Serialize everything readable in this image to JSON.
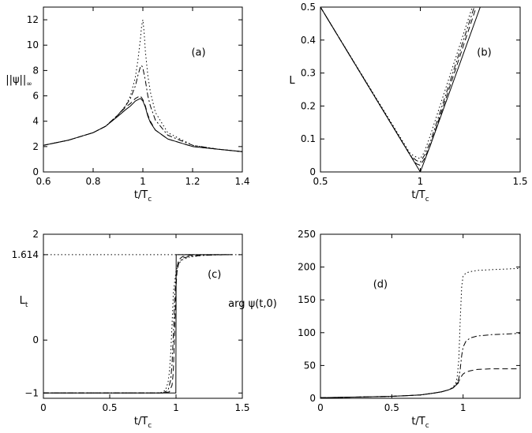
{
  "chart_data": [
    {
      "type": "line",
      "panel_label": "(a)",
      "xlabel": "t/T",
      "xlabel_sub": "c",
      "ylabel": "||ψ||",
      "ylabel_sub": "∞",
      "xlim": [
        0.6,
        1.4
      ],
      "ylim": [
        0,
        13
      ],
      "xticks": [
        0.6,
        0.8,
        1,
        1.2,
        1.4
      ],
      "xtick_labels": [
        "0.6",
        "0.8",
        "1",
        "1.2",
        "1.4"
      ],
      "yticks": [
        0,
        2,
        4,
        6,
        8,
        10,
        12
      ],
      "ytick_labels": [
        "0",
        "2",
        "4",
        "6",
        "8",
        "10",
        "12"
      ],
      "series": [
        {
          "style": "solid",
          "x": [
            0.6,
            0.7,
            0.8,
            0.85,
            0.9,
            0.93,
            0.95,
            0.97,
            0.98,
            0.99,
            1.0,
            1.01,
            1.02,
            1.03,
            1.05,
            1.1,
            1.2,
            1.3,
            1.4
          ],
          "y": [
            2.1,
            2.5,
            3.1,
            3.6,
            4.4,
            4.9,
            5.2,
            5.6,
            5.7,
            5.8,
            5.6,
            5.1,
            4.4,
            3.9,
            3.3,
            2.6,
            2.0,
            1.8,
            1.6
          ]
        },
        {
          "style": "dashed",
          "x": [
            0.6,
            0.7,
            0.8,
            0.85,
            0.9,
            0.93,
            0.95,
            0.97,
            0.98,
            0.99,
            1.0,
            1.01,
            1.02,
            1.03,
            1.05,
            1.1,
            1.2,
            1.3,
            1.4
          ],
          "y": [
            2.1,
            2.5,
            3.1,
            3.6,
            4.5,
            5.1,
            5.4,
            5.8,
            5.9,
            6.0,
            5.7,
            5.2,
            4.5,
            4.0,
            3.3,
            2.6,
            2.0,
            1.8,
            1.6
          ]
        },
        {
          "style": "dashdot",
          "x": [
            0.6,
            0.7,
            0.8,
            0.85,
            0.9,
            0.93,
            0.95,
            0.97,
            0.98,
            0.99,
            0.995,
            1.0,
            1.01,
            1.02,
            1.03,
            1.05,
            1.1,
            1.2,
            1.3,
            1.4
          ],
          "y": [
            2.1,
            2.5,
            3.1,
            3.6,
            4.5,
            5.2,
            5.8,
            6.8,
            7.6,
            8.3,
            8.4,
            8.2,
            7.2,
            6.0,
            5.2,
            4.1,
            2.9,
            2.1,
            1.8,
            1.6
          ]
        },
        {
          "style": "dotted",
          "x": [
            0.6,
            0.7,
            0.8,
            0.85,
            0.9,
            0.93,
            0.95,
            0.97,
            0.98,
            0.99,
            0.995,
            1.0,
            1.005,
            1.01,
            1.02,
            1.03,
            1.05,
            1.1,
            1.2,
            1.3,
            1.4
          ],
          "y": [
            2.1,
            2.5,
            3.1,
            3.6,
            4.5,
            5.2,
            6.0,
            7.5,
            8.8,
            10.5,
            11.5,
            12.0,
            11.0,
            9.5,
            7.6,
            6.3,
            4.7,
            3.1,
            2.1,
            1.8,
            1.6
          ]
        }
      ]
    },
    {
      "type": "line",
      "panel_label": "(b)",
      "xlabel": "t/T",
      "xlabel_sub": "c",
      "ylabel": "L",
      "ylabel_sub": "",
      "xlim": [
        0.5,
        1.5
      ],
      "ylim": [
        0,
        0.5
      ],
      "xticks": [
        0.5,
        1,
        1.5
      ],
      "xtick_labels": [
        "0.5",
        "1",
        "1.5"
      ],
      "yticks": [
        0,
        0.1,
        0.2,
        0.3,
        0.4,
        0.5
      ],
      "ytick_labels": [
        "0",
        "0.1",
        "0.2",
        "0.3",
        "0.4",
        "0.5"
      ],
      "series": [
        {
          "style": "solid",
          "x": [
            0.5,
            0.95,
            1.0,
            1.05,
            1.3
          ],
          "y": [
            0.5,
            0.05,
            0.0,
            0.08,
            0.5
          ]
        },
        {
          "style": "dashed",
          "x": [
            0.5,
            0.95,
            0.98,
            1.0,
            1.02,
            1.05,
            1.28
          ],
          "y": [
            0.5,
            0.05,
            0.025,
            0.02,
            0.04,
            0.08,
            0.5
          ]
        },
        {
          "style": "dashdot",
          "x": [
            0.5,
            0.95,
            0.98,
            1.0,
            1.02,
            1.05,
            1.27
          ],
          "y": [
            0.5,
            0.05,
            0.035,
            0.03,
            0.05,
            0.09,
            0.5
          ]
        },
        {
          "style": "dotted",
          "x": [
            0.5,
            0.95,
            0.98,
            1.0,
            1.02,
            1.05,
            1.26
          ],
          "y": [
            0.5,
            0.055,
            0.045,
            0.04,
            0.06,
            0.11,
            0.5
          ]
        }
      ]
    },
    {
      "type": "line",
      "panel_label": "(c)",
      "xlabel": "t/T",
      "xlabel_sub": "c",
      "ylabel": "L",
      "ylabel_sub": "t",
      "xlim": [
        0,
        1.5
      ],
      "ylim": [
        -1.1,
        2
      ],
      "xticks": [
        0,
        0.5,
        1,
        1.5
      ],
      "xtick_labels": [
        "0",
        "0.5",
        "1",
        "1.5"
      ],
      "yticks": [
        -1,
        0,
        1.614,
        2
      ],
      "ytick_labels": [
        "−1",
        "0",
        "1.614",
        "2"
      ],
      "reference_line": {
        "y": 1.614,
        "style": "dotted"
      },
      "series": [
        {
          "style": "solid",
          "x": [
            0,
            0.999,
            0.999,
            1.001,
            1.001,
            1.42
          ],
          "y": [
            -1,
            -1,
            -1,
            1.614,
            1.614,
            1.614
          ]
        },
        {
          "style": "dashed",
          "x": [
            0,
            0.9,
            0.95,
            0.97,
            0.98,
            0.99,
            1.0,
            1.01,
            1.02,
            1.05,
            1.1,
            1.2,
            1.3,
            1.42
          ],
          "y": [
            -1,
            -1,
            -0.98,
            -0.85,
            -0.6,
            0.2,
            1.0,
            1.4,
            1.52,
            1.58,
            1.6,
            1.61,
            1.614,
            1.614
          ]
        },
        {
          "style": "dashdot",
          "x": [
            0,
            0.9,
            0.94,
            0.96,
            0.97,
            0.98,
            0.99,
            1.0,
            1.02,
            1.05,
            1.1,
            1.2,
            1.3,
            1.42
          ],
          "y": [
            -1,
            -1,
            -0.95,
            -0.75,
            -0.45,
            0.1,
            0.8,
            1.2,
            1.45,
            1.55,
            1.58,
            1.6,
            1.61,
            1.614
          ]
        },
        {
          "style": "dotted",
          "x": [
            0,
            0.88,
            0.92,
            0.94,
            0.95,
            0.96,
            0.97,
            0.98,
            1.0,
            1.02,
            1.05,
            1.1,
            1.2,
            1.3,
            1.42
          ],
          "y": [
            -1,
            -1,
            -0.95,
            -0.8,
            -0.6,
            -0.25,
            0.3,
            0.9,
            1.3,
            1.45,
            1.52,
            1.57,
            1.6,
            1.61,
            1.614
          ]
        }
      ]
    },
    {
      "type": "line",
      "panel_label": "(d)",
      "xlabel": "t/T",
      "xlabel_sub": "c",
      "ylabel": "arg ψ(t,0)",
      "ylabel_sub": "",
      "xlim": [
        0,
        1.4
      ],
      "ylim": [
        0,
        250
      ],
      "xticks": [
        0,
        0.5,
        1
      ],
      "xtick_labels": [
        "0",
        "0.5",
        "1"
      ],
      "yticks": [
        0,
        50,
        100,
        150,
        200,
        250
      ],
      "ytick_labels": [
        "0",
        "50",
        "100",
        "150",
        "200",
        "250"
      ],
      "series": [
        {
          "style": "solid",
          "x": [
            0,
            0.3,
            0.5,
            0.7,
            0.8,
            0.85,
            0.9,
            0.93,
            0.95,
            0.97
          ],
          "y": [
            1,
            2,
            3,
            5,
            8,
            10,
            13,
            16,
            20,
            24
          ]
        },
        {
          "style": "dashed",
          "x": [
            0,
            0.3,
            0.5,
            0.7,
            0.8,
            0.85,
            0.9,
            0.93,
            0.95,
            0.97,
            0.98,
            0.99,
            1.0,
            1.02,
            1.05,
            1.1,
            1.2,
            1.3,
            1.4
          ],
          "y": [
            1,
            2,
            3,
            5,
            8,
            10,
            13,
            16,
            20,
            26,
            30,
            34,
            37,
            40,
            42,
            44,
            45,
            45,
            45
          ]
        },
        {
          "style": "dashdot",
          "x": [
            0,
            0.3,
            0.5,
            0.7,
            0.8,
            0.85,
            0.9,
            0.93,
            0.95,
            0.97,
            0.98,
            0.99,
            1.0,
            1.02,
            1.05,
            1.1,
            1.2,
            1.3,
            1.4
          ],
          "y": [
            1,
            2,
            3,
            5,
            8,
            10,
            13,
            16,
            21,
            30,
            45,
            65,
            78,
            87,
            92,
            95,
            97,
            98,
            99
          ]
        },
        {
          "style": "dotted",
          "x": [
            0,
            0.3,
            0.5,
            0.7,
            0.8,
            0.85,
            0.9,
            0.93,
            0.95,
            0.96,
            0.97,
            0.98,
            0.99,
            1.0,
            1.02,
            1.05,
            1.1,
            1.2,
            1.3,
            1.4
          ],
          "y": [
            1,
            2,
            3,
            5,
            8,
            10,
            13,
            17,
            24,
            35,
            60,
            120,
            170,
            186,
            191,
            193,
            195,
            196,
            197,
            198
          ]
        }
      ]
    }
  ]
}
